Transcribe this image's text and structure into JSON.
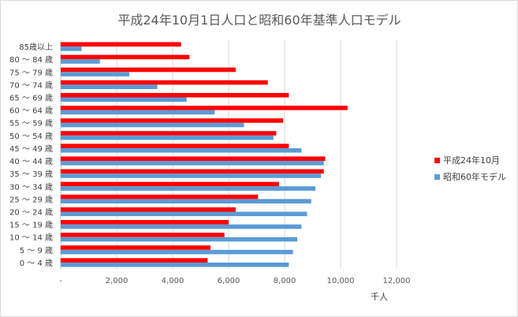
{
  "chart_data": {
    "type": "bar",
    "orientation": "horizontal",
    "title": "平成24年10月1日人口と昭和60年基準人口モデル",
    "xlabel": "千人",
    "ylabel": "",
    "xlim": [
      0,
      12000
    ],
    "xticks": [
      0,
      2000,
      4000,
      6000,
      8000,
      10000,
      12000
    ],
    "xtick_labels": [
      "-",
      "2,000",
      "4,000",
      "6,000",
      "8,000",
      "10,000",
      "12,000"
    ],
    "grid": true,
    "legend_position": "right",
    "categories": [
      "0 ～ 4 歳",
      "5 ～ 9 歳",
      "10 ～ 14 歳",
      "15 ～ 19 歳",
      "20 ～ 24 歳",
      "25 ～ 29 歳",
      "30 ～ 34 歳",
      "35 ～ 39 歳",
      "40 ～ 44 歳",
      "45 ～ 49 歳",
      "50 ～ 54 歳",
      "55 ～ 59 歳",
      "60 ～ 64 歳",
      "65 ～ 69 歳",
      "70 ～ 74 歳",
      "75 ～ 79 歳",
      "80 ～ 84 歳",
      "85歳以上"
    ],
    "series": [
      {
        "name": "平成24年10月",
        "color": "#ff0000",
        "values": [
          5250,
          5350,
          5850,
          6000,
          6250,
          7050,
          7800,
          9400,
          9450,
          8150,
          7700,
          7950,
          10250,
          8150,
          7400,
          6250,
          4600,
          4300
        ]
      },
      {
        "name": "昭和60年モデル",
        "color": "#5b9bd5",
        "values": [
          8150,
          8300,
          8450,
          8600,
          8800,
          8950,
          9100,
          9300,
          9400,
          8600,
          7600,
          6550,
          5500,
          4500,
          3450,
          2450,
          1400,
          750
        ]
      }
    ]
  }
}
